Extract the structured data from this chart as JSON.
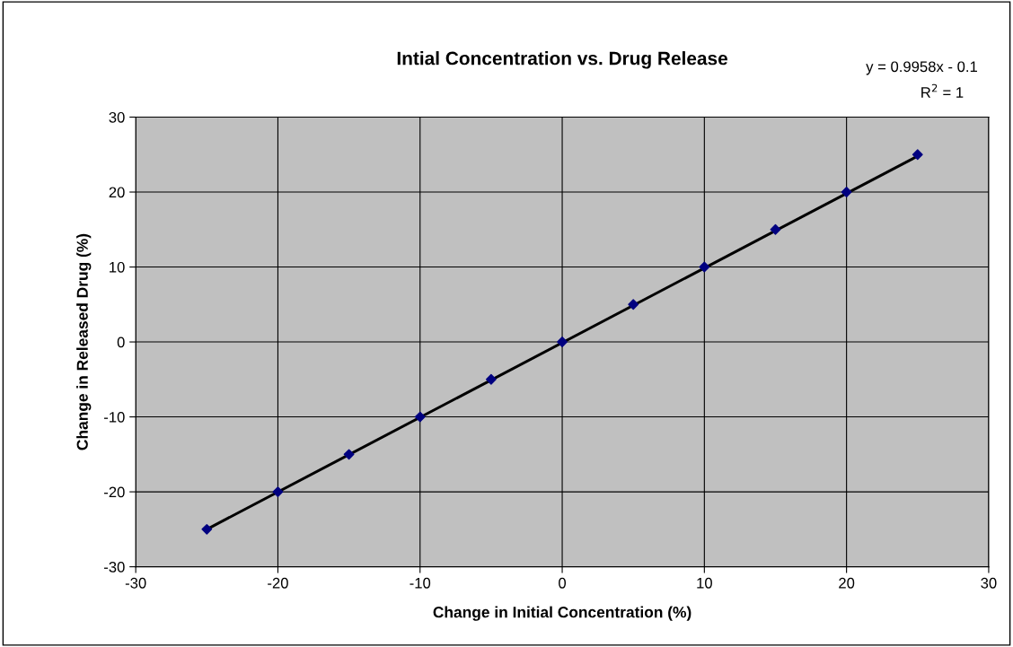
{
  "chart_data": {
    "type": "scatter",
    "title": "Intial Concentration vs. Drug Release",
    "xlabel": "Change in Initial Concentration (%)",
    "ylabel": "Change in Released Drug (%)",
    "series": [
      {
        "color": "#000080",
        "marker": "diamond",
        "x": [
          -25,
          -20,
          -15,
          -10,
          -5,
          0,
          5,
          10,
          15,
          20,
          25
        ],
        "values": [
          -25,
          -20,
          -15,
          -10,
          -5,
          0,
          5,
          10,
          15,
          20,
          25
        ]
      },
      {
        "type": "line",
        "color": "#000000",
        "marker": "none",
        "x": [
          -25,
          25
        ],
        "values": [
          -25.0,
          24.8
        ]
      }
    ],
    "xlim": [
      -30,
      30
    ],
    "xticks": [
      -30,
      -20,
      -10,
      0,
      10,
      20,
      30
    ],
    "ylim": [
      -30,
      30
    ],
    "yticks": [
      -30,
      -20,
      -10,
      0,
      10,
      20,
      30
    ],
    "grid": true,
    "legend": false,
    "annotations": [
      "y = 0.9958x - 0.1",
      "R$^{2}$ = 1"
    ]
  }
}
